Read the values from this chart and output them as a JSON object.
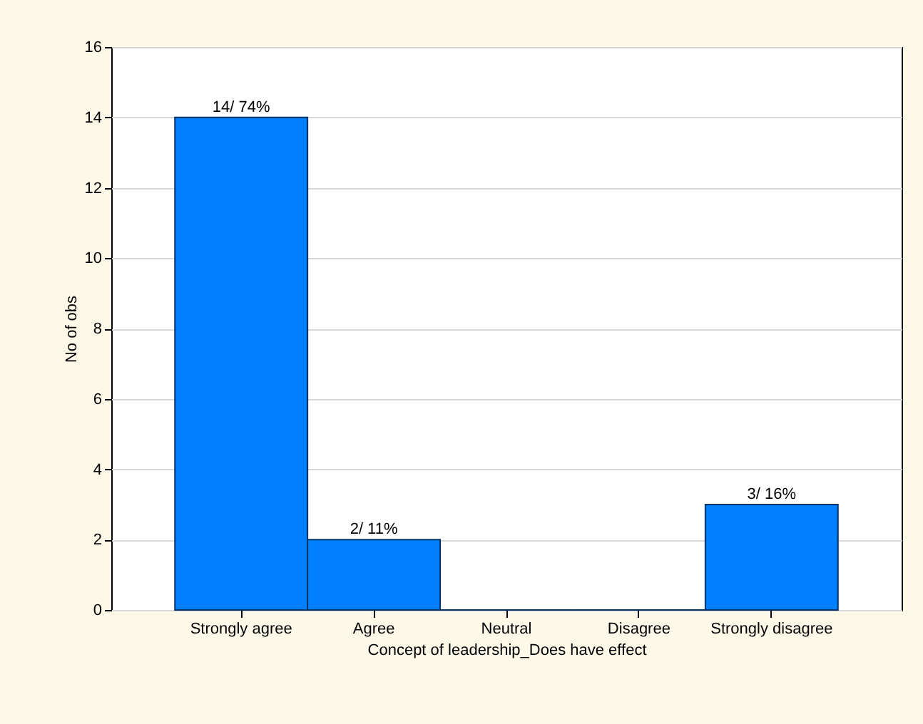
{
  "chart_data": {
    "type": "bar",
    "xlabel": "Concept of leadership_Does have effect",
    "ylabel": "No of obs",
    "categories": [
      "Strongly agree",
      "Agree",
      "Neutral",
      "Disagree",
      "Strongly disagree"
    ],
    "values": [
      14,
      2,
      0,
      0,
      3
    ],
    "value_labels": [
      "14/ 74%",
      "2/ 11%",
      null,
      null,
      "3/ 16%"
    ],
    "color": "#0080ff",
    "ylim": [
      0,
      16
    ],
    "yticks": [
      0,
      2,
      4,
      6,
      8,
      10,
      12,
      14,
      16
    ],
    "grid": "y"
  }
}
